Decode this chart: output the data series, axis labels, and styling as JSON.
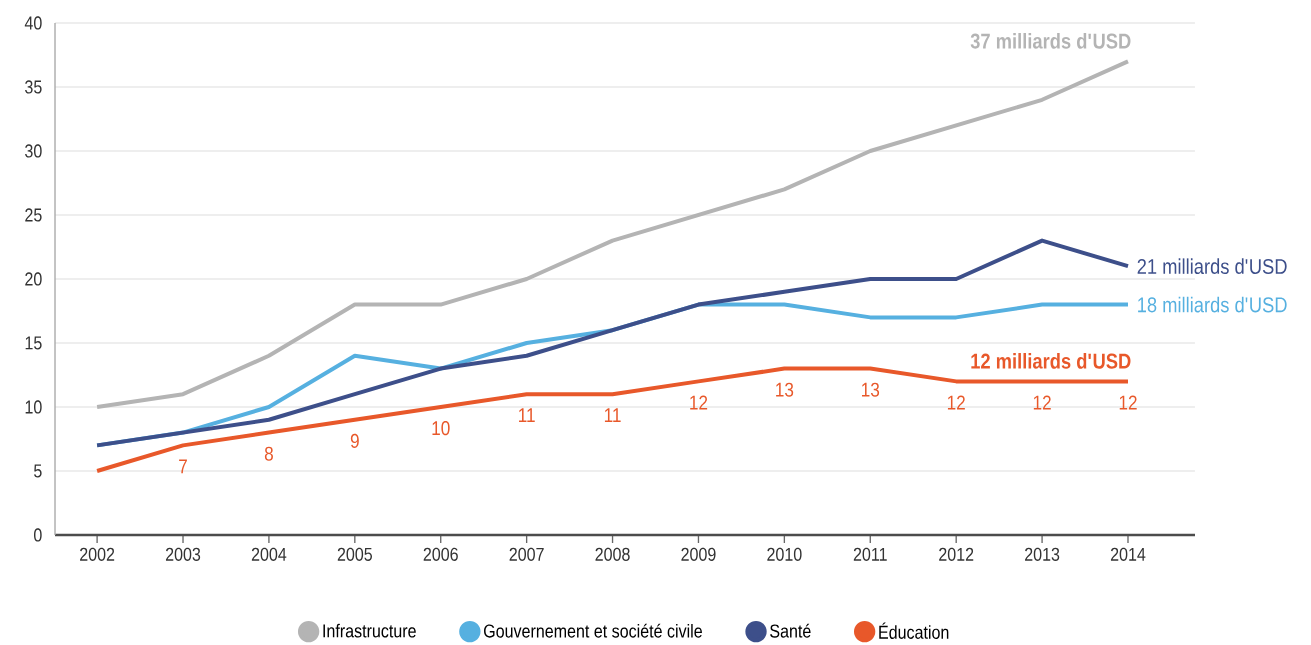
{
  "chart_data": {
    "type": "line",
    "categories": [
      "2002",
      "2003",
      "2004",
      "2005",
      "2006",
      "2007",
      "2008",
      "2009",
      "2010",
      "2011",
      "2012",
      "2013",
      "2014"
    ],
    "series": [
      {
        "name": "Éducation",
        "color": "#e8582a",
        "values": [
          5,
          7,
          8,
          9,
          10,
          11,
          11,
          12,
          13,
          13,
          12,
          12,
          12
        ],
        "value_labels": [
          null,
          "7",
          "8",
          "9",
          "10",
          "11",
          "11",
          "12",
          "13",
          "13",
          "12",
          "12",
          "12"
        ]
      },
      {
        "name": "Santé",
        "color": "#3d4f8a",
        "values": [
          7,
          8,
          9,
          11,
          13,
          14,
          16,
          18,
          19,
          20,
          20,
          23,
          21
        ]
      },
      {
        "name": "Gouvernement et société civile",
        "color": "#56b0e0",
        "values": [
          7,
          8,
          10,
          14,
          13,
          15,
          16,
          18,
          18,
          17,
          17,
          18,
          18
        ]
      },
      {
        "name": "Infrastructure",
        "color": "#b4b4b4",
        "values": [
          10,
          11,
          14,
          18,
          18,
          20,
          23,
          25,
          27,
          30,
          32,
          34,
          37
        ]
      }
    ],
    "ylim": [
      0,
      40
    ],
    "yticks": [
      0,
      5,
      10,
      15,
      20,
      25,
      30,
      35,
      40
    ],
    "grid": "y",
    "legend": "bottom",
    "marker": "none",
    "line_style": "solid",
    "annotations": [
      {
        "text": "37 milliards d'USD",
        "x": "2014",
        "y": 37
      },
      {
        "text": "21 milliards d'USD",
        "x": "2014",
        "y": 21
      },
      {
        "text": "18 milliards d'USD",
        "x": "2014",
        "y": 18
      },
      {
        "text": "12 milliards d'USD",
        "x": "2014",
        "y": 12
      }
    ]
  }
}
